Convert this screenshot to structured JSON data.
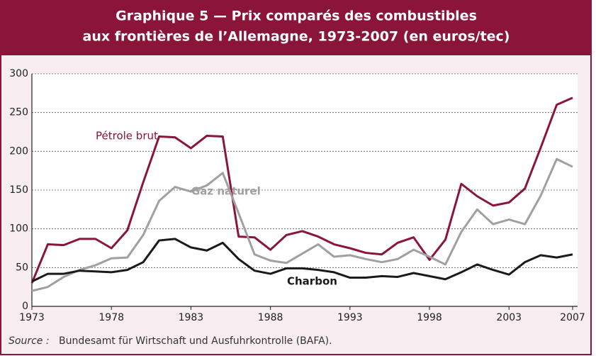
{
  "chart_data": {
    "type": "line",
    "title": [
      "Graphique 5 — Prix comparés des combustibles",
      "aux frontières de l’Allemagne, 1973-2007 (en euros/tec)"
    ],
    "source_label": "Source :",
    "source_text": "Bundesamt für Wirtschaft und Ausfuhrkontrolle (BAFA).",
    "x": [
      1973,
      1974,
      1975,
      1976,
      1977,
      1978,
      1979,
      1980,
      1981,
      1982,
      1983,
      1984,
      1985,
      1986,
      1987,
      1988,
      1989,
      1990,
      1991,
      1992,
      1993,
      1994,
      1995,
      1996,
      1997,
      1998,
      1999,
      2000,
      2001,
      2002,
      2003,
      2004,
      2005,
      2006,
      2007
    ],
    "xlim": [
      1973,
      2007
    ],
    "xticks": [
      1973,
      1978,
      1983,
      1988,
      1993,
      1998,
      2003,
      2007
    ],
    "ylim": [
      0,
      300
    ],
    "yticks": [
      0,
      50,
      100,
      150,
      200,
      250,
      300
    ],
    "grid": true,
    "series": [
      {
        "name": "Pétrole brut",
        "color": "#8a1538",
        "values": [
          30,
          80,
          79,
          87,
          87,
          75,
          98,
          160,
          219,
          218,
          204,
          220,
          219,
          90,
          89,
          73,
          92,
          97,
          90,
          80,
          75,
          69,
          67,
          82,
          89,
          60,
          86,
          158,
          142,
          130,
          134,
          152,
          205,
          260,
          269
        ]
      },
      {
        "name": "Gaz naturel",
        "color": "#a0a0a0",
        "values": [
          20,
          25,
          38,
          47,
          53,
          62,
          63,
          92,
          136,
          154,
          148,
          156,
          172,
          120,
          67,
          59,
          56,
          68,
          80,
          64,
          66,
          61,
          57,
          61,
          73,
          64,
          54,
          96,
          125,
          106,
          112,
          106,
          143,
          190,
          180
        ]
      },
      {
        "name": "Charbon",
        "color": "#1a1a1a",
        "values": [
          32,
          42,
          42,
          46,
          45,
          44,
          47,
          57,
          85,
          87,
          76,
          72,
          82,
          61,
          46,
          42,
          49,
          49,
          47,
          44,
          37,
          37,
          39,
          38,
          43,
          39,
          35,
          44,
          54,
          47,
          41,
          57,
          66,
          63,
          67
        ]
      }
    ]
  }
}
